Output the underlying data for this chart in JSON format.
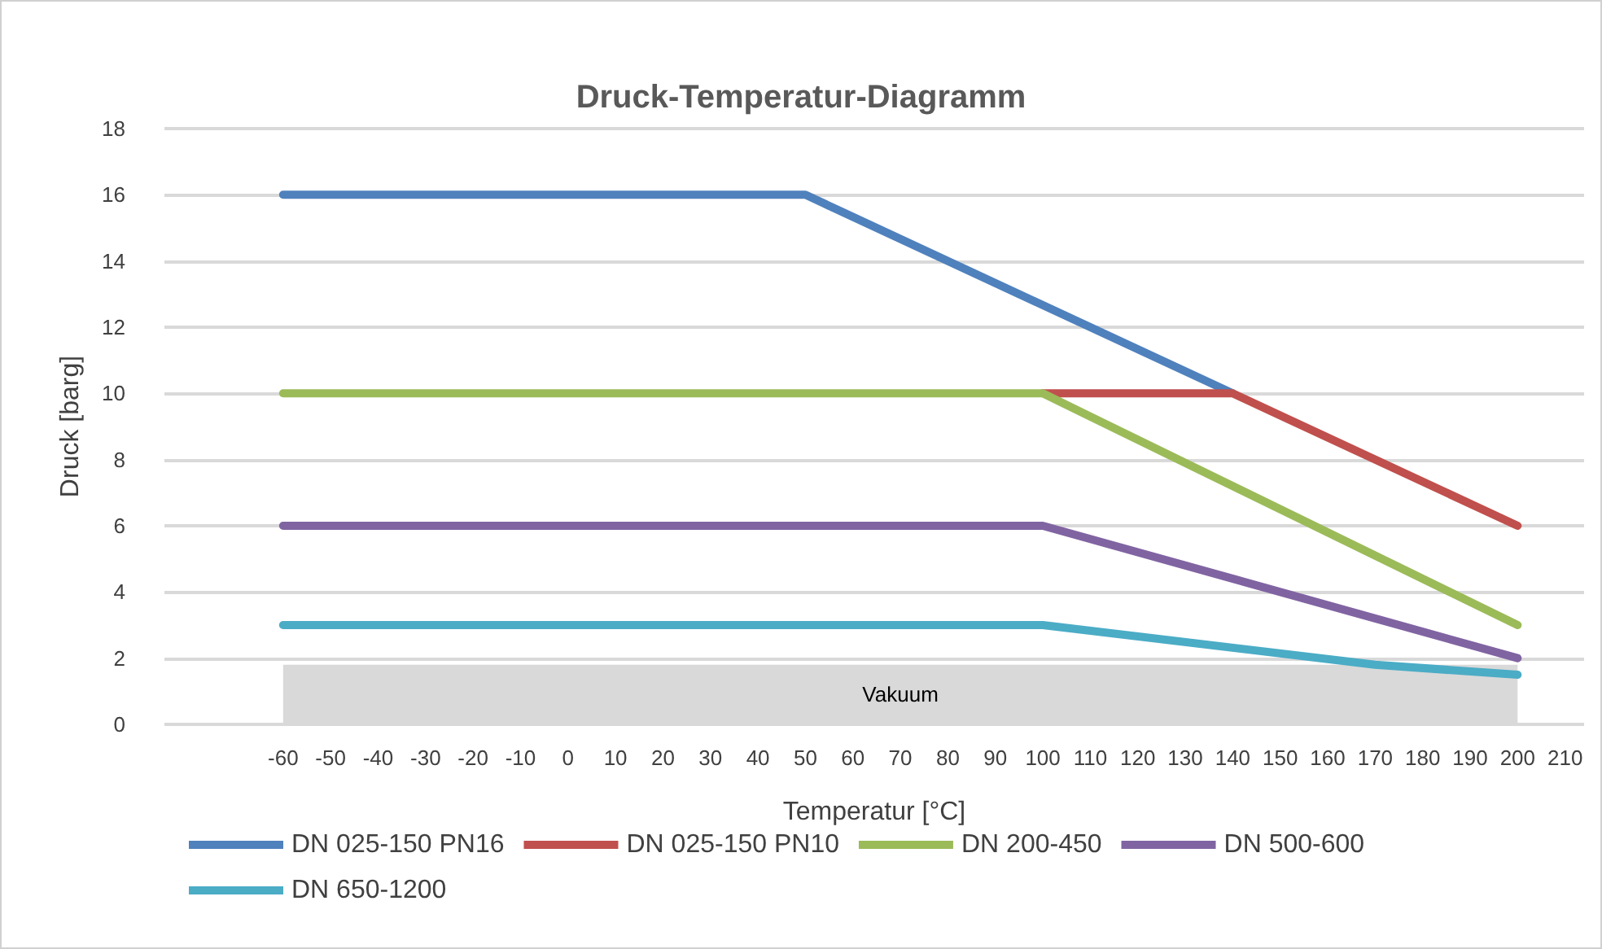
{
  "chart_data": {
    "type": "line",
    "title": "Druck-Temperatur-Diagramm",
    "xlabel": "Temperatur [°C]",
    "ylabel": "Druck [barg]",
    "xlim": [
      -85,
      214
    ],
    "xticks": [
      -60,
      -50,
      -40,
      -30,
      -20,
      -10,
      0,
      10,
      20,
      30,
      40,
      50,
      60,
      70,
      80,
      90,
      100,
      110,
      120,
      130,
      140,
      150,
      160,
      170,
      180,
      190,
      200,
      210
    ],
    "ylim": [
      0,
      18
    ],
    "yticks": [
      0,
      2,
      4,
      6,
      8,
      10,
      12,
      14,
      16,
      18
    ],
    "grid": "y",
    "legend": "bottom",
    "marker": "none",
    "line_style": "solid",
    "series": [
      {
        "name": "DN 025-150 PN16",
        "color": "#4f81bd",
        "x": [
          -60,
          50,
          140
        ],
        "values": [
          16,
          16,
          10
        ]
      },
      {
        "name": "DN 025-150 PN10",
        "color": "#c0504d",
        "x": [
          100,
          140,
          200
        ],
        "values": [
          10,
          10,
          6
        ]
      },
      {
        "name": "DN 200-450",
        "color": "#9bbb59",
        "x": [
          -60,
          100,
          200
        ],
        "values": [
          10,
          10,
          3
        ]
      },
      {
        "name": "DN 500-600",
        "color": "#8064a2",
        "x": [
          -60,
          100,
          200
        ],
        "values": [
          6,
          6,
          2
        ]
      },
      {
        "name": "DN 650-1200",
        "color": "#4bacc6",
        "x": [
          -60,
          100,
          170,
          200
        ],
        "values": [
          3,
          3,
          1.8,
          1.5
        ]
      }
    ],
    "bands": [
      {
        "axis": "y",
        "from": 0,
        "to": 1.8,
        "label": "Vakuum",
        "color": "#d9d9d9"
      }
    ]
  }
}
